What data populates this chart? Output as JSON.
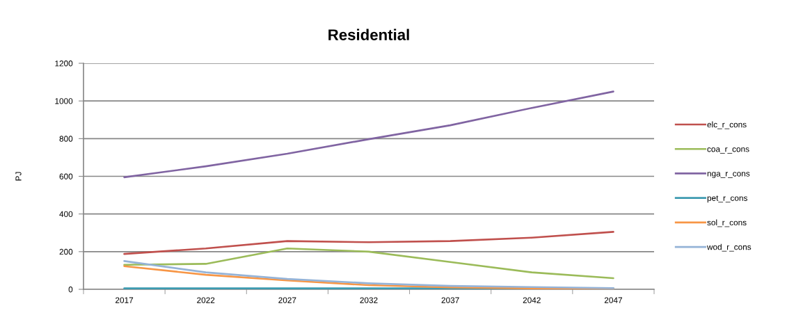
{
  "chart_data": {
    "type": "line",
    "title": "Residential",
    "ylabel": "PJ",
    "categories": [
      "2017",
      "2022",
      "2027",
      "2032",
      "2037",
      "2042",
      "2047"
    ],
    "ylim": [
      0,
      1200
    ],
    "yticks": [
      0,
      200,
      400,
      600,
      800,
      1000,
      1200
    ],
    "grid": "y",
    "legend": "right",
    "line_style": "solid",
    "series": [
      {
        "name": "elc_r_cons",
        "color": "#c0504d",
        "values": [
          188,
          217,
          256,
          250,
          256,
          274,
          305
        ]
      },
      {
        "name": "coa_r_cons",
        "color": "#9bbb59",
        "values": [
          130,
          135,
          217,
          200,
          145,
          90,
          59
        ]
      },
      {
        "name": "nga_r_cons",
        "color": "#8064a2",
        "values": [
          595,
          653,
          720,
          797,
          871,
          963,
          1050
        ]
      },
      {
        "name": "pet_r_cons",
        "color": "#3d9ab0",
        "values": [
          5,
          5,
          5,
          5,
          5,
          5,
          5
        ]
      },
      {
        "name": "sol_r_cons",
        "color": "#f79646",
        "values": [
          123,
          77,
          47,
          22,
          10,
          5,
          2
        ]
      },
      {
        "name": "wod_r_cons",
        "color": "#95b3d7",
        "values": [
          150,
          90,
          55,
          32,
          18,
          12,
          6
        ]
      }
    ]
  }
}
